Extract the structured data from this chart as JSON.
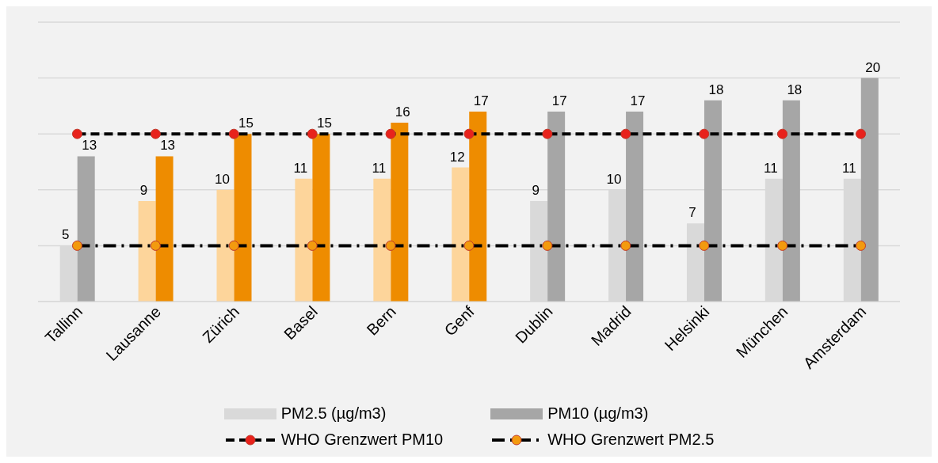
{
  "chart_data": {
    "type": "bar",
    "categories": [
      "Tallinn",
      "Lausanne",
      "Zürich",
      "Basel",
      "Bern",
      "Genf",
      "Dublin",
      "Madrid",
      "Helsinki",
      "München",
      "Amsterdam"
    ],
    "series": [
      {
        "name": "PM2.5 (µg/m3)",
        "color": "#d9d9d9",
        "colors": [
          "#d9d9d9",
          "#fdd59b",
          "#fdd59b",
          "#fdd59b",
          "#fdd59b",
          "#fdd59b",
          "#d9d9d9",
          "#d9d9d9",
          "#d9d9d9",
          "#d9d9d9",
          "#d9d9d9"
        ],
        "values": [
          5,
          9,
          10,
          11,
          11,
          12,
          9,
          10,
          7,
          11,
          11
        ],
        "value_labels": [
          "5",
          "9",
          "10",
          "11",
          "11",
          "12",
          "9",
          "10",
          "7",
          "11",
          "11"
        ]
      },
      {
        "name": "PM10 (µg/m3)",
        "color": "#a6a6a6",
        "colors": [
          "#a6a6a6",
          "#ee8c00",
          "#ee8c00",
          "#ee8c00",
          "#ee8c00",
          "#ee8c00",
          "#a6a6a6",
          "#a6a6a6",
          "#a6a6a6",
          "#a6a6a6",
          "#a6a6a6"
        ],
        "values": [
          13,
          13,
          15,
          15,
          16,
          17,
          17,
          17,
          18,
          18,
          20
        ],
        "value_labels": [
          "13",
          "13",
          "15",
          "15",
          "16",
          "17",
          "17",
          "17",
          "18",
          "18",
          "20"
        ]
      },
      {
        "name": "WHO Grenzwert PM10",
        "type": "line",
        "color": "#000000",
        "line_style": "dashed",
        "marker": "circle",
        "colors": [
          "#e8221c",
          "#e8221c",
          "#e8221c",
          "#e8221c",
          "#e8221c",
          "#e8221c",
          "#e8221c",
          "#e8221c",
          "#e8221c",
          "#e8221c",
          "#e8221c"
        ],
        "values": [
          15,
          15,
          15,
          15,
          15,
          15,
          15,
          15,
          15,
          15,
          15
        ]
      },
      {
        "name": "WHO Grenzwert PM2.5",
        "type": "line",
        "color": "#000000",
        "line_style": "dotted",
        "marker": "circle",
        "colors": [
          "#f39a0e",
          "#f39a0e",
          "#f39a0e",
          "#f39a0e",
          "#f39a0e",
          "#f39a0e",
          "#f39a0e",
          "#f39a0e",
          "#f39a0e",
          "#f39a0e",
          "#f39a0e"
        ],
        "values": [
          5,
          5,
          5,
          5,
          5,
          5,
          5,
          5,
          5,
          5,
          5
        ]
      }
    ],
    "ylim": [
      0,
      25
    ],
    "tick_labels": "x",
    "grid": "y",
    "legend": "bottom"
  }
}
